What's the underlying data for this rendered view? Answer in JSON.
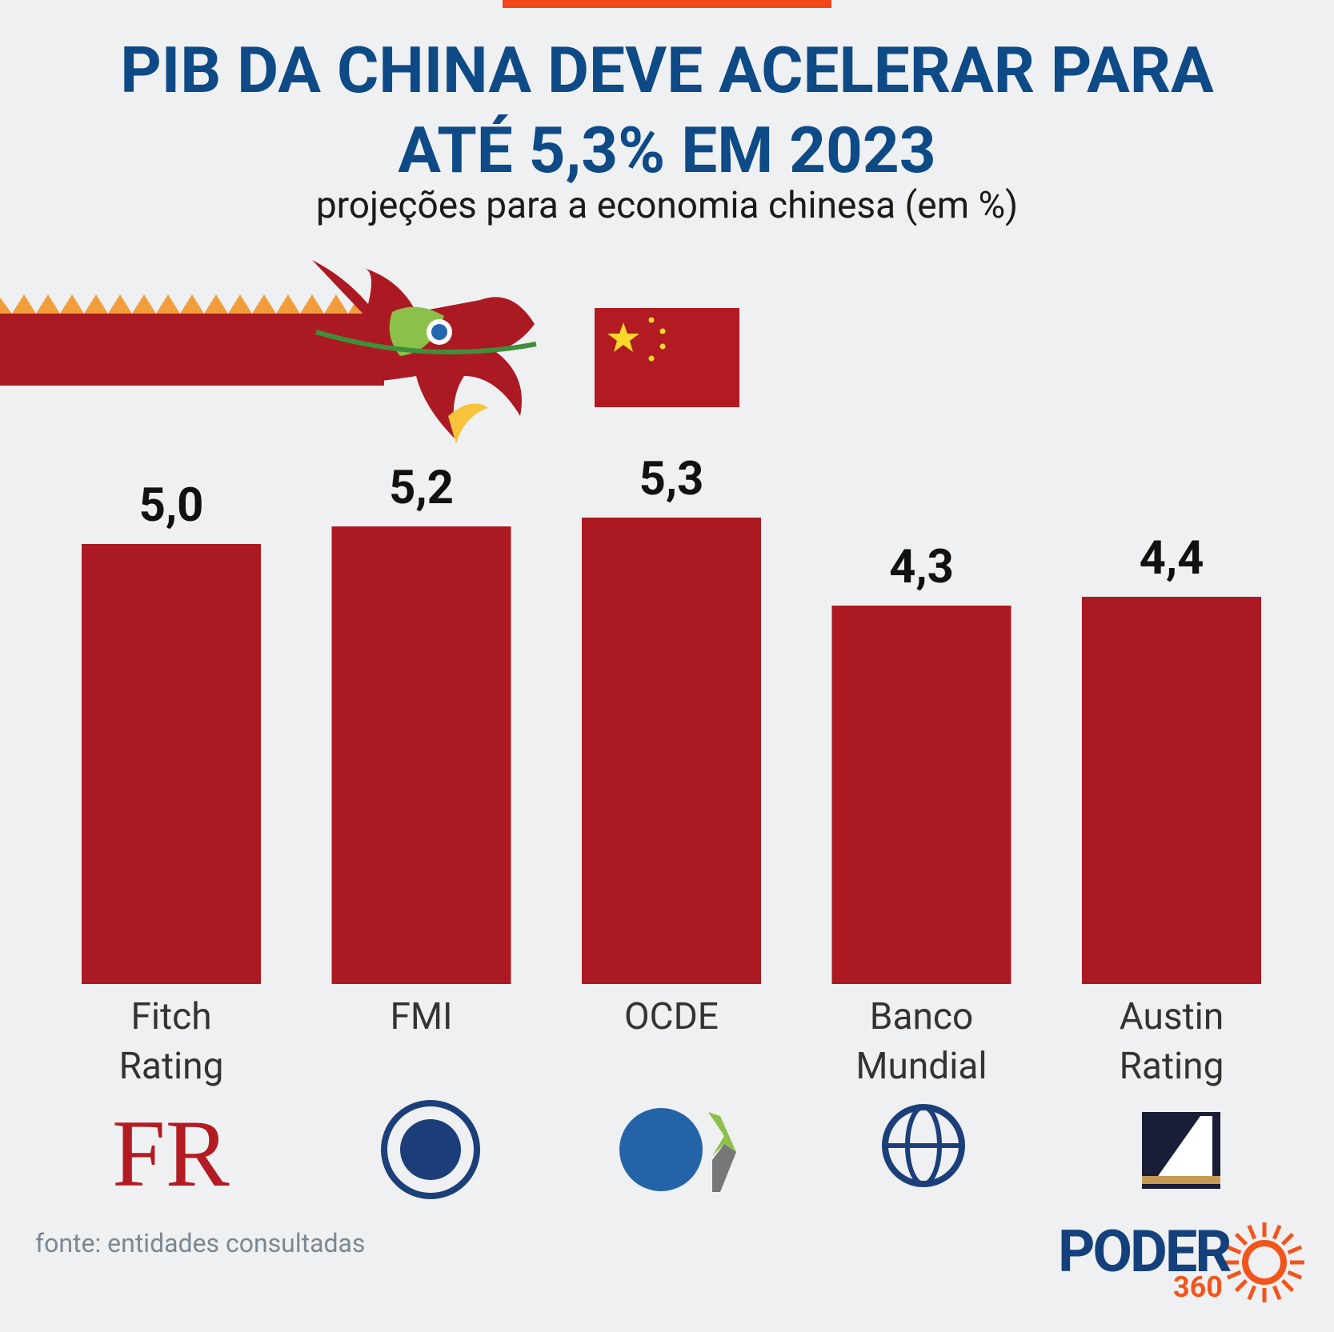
{
  "chart_data": {
    "type": "bar",
    "title": "PIB DA CHINA DEVE ACELERAR PARA ATÉ 5,3% EM 2023",
    "subtitle": "projeções para a economia chinesa (em %)",
    "categories": [
      "Fitch Rating",
      "FMI",
      "OCDE",
      "Banco Mundial",
      "Austin Rating"
    ],
    "values": [
      5.0,
      5.2,
      5.3,
      4.3,
      4.4
    ],
    "value_labels": [
      "5,0",
      "5,2",
      "5,3",
      "4,3",
      "4,4"
    ],
    "color": "#ab1a23",
    "source": "fonte: entidades consultadas",
    "logo_text": "FR",
    "brand": "PODER",
    "brand_number": "360"
  }
}
